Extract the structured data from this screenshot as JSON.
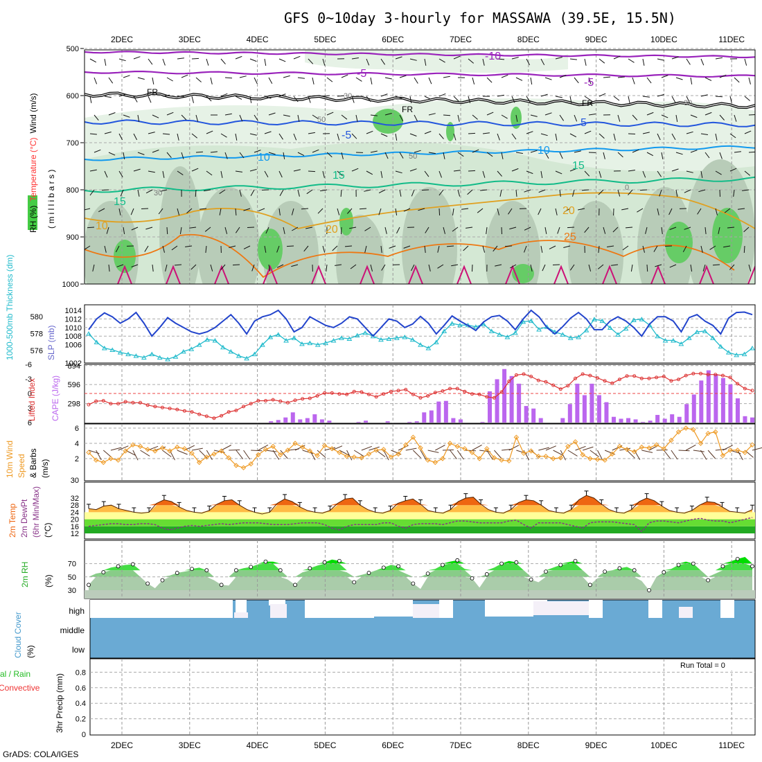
{
  "title": "GFS 0~10day 3-hourly for MASSAWA (39.5E, 15.5N)",
  "credit": "GrADS: COLA/IGES",
  "dates": [
    "2DEC",
    "3DEC",
    "4DEC",
    "5DEC",
    "6DEC",
    "7DEC",
    "8DEC",
    "9DEC",
    "10DEC",
    "11DEC"
  ],
  "panels": {
    "upper_air": {
      "ylabel_parts": [
        "RH (%)",
        "Temperature (°C)",
        "Wind (m/s)"
      ],
      "ylabel_units": "( m i l l i b a r s )",
      "yticks": [
        500,
        600,
        700,
        800,
        900,
        1000
      ],
      "contour_labels": [
        "-10",
        "-5",
        "-5",
        "FR",
        "FR",
        "FR",
        "5",
        "-5",
        "10",
        "10",
        "15",
        "15",
        "15",
        "20",
        "20",
        "25",
        "10",
        "30",
        "30",
        "50",
        "50",
        "30",
        "0"
      ]
    },
    "slp": {
      "ylabel_left": "1000-500mb Thickness (dm)",
      "ylabel_right": "SLP (mb)",
      "left_ticks": [
        580,
        578,
        576
      ],
      "right_ticks": [
        1014,
        1012,
        1010,
        1008,
        1006
      ],
      "right_bottom_tick": "1002"
    },
    "cape": {
      "ylabel_left": "Lifted Index",
      "ylabel_right": "CAPE (J/kg)",
      "left_ticks": [
        "-6",
        "-3",
        "0",
        "3",
        "6"
      ],
      "right_ticks": [
        "894",
        "596",
        "298"
      ]
    },
    "wind10m": {
      "ylabel": [
        "10m Wind",
        "Speed",
        "& Barbs",
        "(m/s)"
      ],
      "yticks": [
        "6",
        "4",
        "2"
      ],
      "top_tick": "30"
    },
    "temp2m": {
      "ylabel": [
        "2m Temp",
        "2m DewPt",
        "(6hr Min/Max)",
        "(°C)"
      ],
      "yticks": [
        "32",
        "28",
        "24",
        "20",
        "16",
        "12"
      ]
    },
    "rh2m": {
      "ylabel": [
        "2m RH",
        "(%)"
      ],
      "yticks": [
        "70",
        "50",
        "30"
      ]
    },
    "cloud": {
      "ylabel": [
        "Cloud Cover",
        "(%)"
      ],
      "levels": [
        "high",
        "middle",
        "low"
      ]
    },
    "precip": {
      "ylabel_left": [
        "Total / Rain",
        "Convective"
      ],
      "ylabel_right": "3hr Precip (mm)",
      "yticks": [
        "0.8",
        "0.6",
        "0.4",
        "0.2",
        "0"
      ],
      "run_total": "Run Total = 0"
    }
  },
  "chart_data": {
    "type": "meteogram",
    "x": "3-hourly steps, 2 DEC to 11 DEC",
    "slp_mb": [
      1009.5,
      1012,
      1013.4,
      1012.5,
      1011,
      1012,
      1013.5,
      1011,
      1008,
      1010,
      1012.3,
      1011,
      1010,
      1009,
      1008.5,
      1009,
      1010,
      1011.5,
      1013,
      1011,
      1008.5,
      1011.5,
      1012.5,
      1013,
      1014,
      1012,
      1009,
      1010,
      1012.5,
      1011.5,
      1010.5,
      1010,
      1011,
      1012.5,
      1012,
      1010,
      1008,
      1010,
      1012,
      1011.5,
      1010,
      1010.8,
      1012.6,
      1011,
      1008.5,
      1010.5,
      1012.7,
      1011.5,
      1010.5,
      1009.3,
      1011.3,
      1012.5,
      1012.8,
      1011.5,
      1009.5,
      1012,
      1014,
      1012.5,
      1010,
      1008.5,
      1010.2,
      1012.2,
      1013.5,
      1012,
      1009.5,
      1009.5,
      1011.5,
      1012.5,
      1011.5,
      1010,
      1008,
      1010.8,
      1012.5,
      1012.5,
      1011.5,
      1009,
      1012.3,
      1013,
      1011.5,
      1010.5,
      1008.5,
      1012.2,
      1013.5,
      1013.6,
      1013
    ],
    "thickness_dm": [
      578,
      577,
      576.3,
      576.1,
      575.8,
      575.6,
      575.4,
      575.2,
      575.6,
      575.2,
      575,
      575.3,
      575.9,
      576.2,
      576.7,
      577.3,
      577.2,
      576.4,
      575.9,
      575.4,
      575.1,
      575.6,
      576.7,
      577.6,
      577.9,
      577.2,
      577.5,
      576.8,
      576.9,
      576.7,
      576.9,
      577.2,
      577.5,
      577.4,
      577.8,
      578.1,
      577.7,
      577.3,
      577.4,
      577.5,
      577.6,
      577.3,
      576.7,
      576.3,
      577,
      578.3,
      579.2,
      579,
      579,
      578.8,
      579.1,
      578.3,
      577.9,
      577.6,
      578.1,
      579.4,
      579.5,
      578.5,
      578.8,
      578.2,
      577.9,
      577.5,
      577.6,
      578.4,
      579.7,
      579.5,
      578.7,
      577.9,
      578.6,
      579.6,
      579.7,
      579,
      577.7,
      577.2,
      577.2,
      576.8,
      577.5,
      578.2,
      578.3,
      577.5,
      576.5,
      575.8,
      575.5,
      575.6,
      576.3
    ],
    "lifted_index": [
      2.3,
      1.6,
      1.5,
      2.1,
      2.1,
      1.7,
      1.9,
      1.9,
      2.4,
      2.7,
      2.9,
      3.1,
      3.3,
      3.6,
      3.8,
      4.3,
      4.7,
      5.1,
      4.6,
      3.8,
      3.5,
      2.7,
      2.1,
      1.5,
      1.5,
      1.3,
      1.6,
      1.9,
      1.4,
      1.1,
      1.0,
      0.5,
      -0.1,
      -0.1,
      0.1,
      0.2,
      -0.4,
      -0.3,
      0.2,
      0.7,
      0.1,
      -0.4,
      -0.6,
      -0.8,
      0.2,
      0.9,
      0.5,
      -0.2,
      -0.5,
      -1.0,
      -1.0,
      -0.4,
      0.1,
      0.2,
      0.7,
      0.9,
      -0.3,
      -2.5,
      -3.8,
      -4.0,
      -3.5,
      -2.7,
      -2.4,
      -1.7,
      -0.9,
      -1.6,
      -3.1,
      -4.0,
      -3.7,
      -3.2,
      -2.6,
      -2.1,
      -2.9,
      -3.6,
      -3.6,
      -3.1,
      -3.1,
      -3.3,
      -3.5,
      -2.6,
      -2.9,
      -3.7,
      -4.1,
      -4.1,
      -3.9,
      -3.9,
      -3.7,
      -3.3,
      -2.0,
      -1.0,
      -0.6
    ],
    "cape_jkg": [
      0,
      0,
      0,
      0,
      0,
      0,
      0,
      0,
      0,
      0,
      0,
      0,
      0,
      0,
      0,
      0,
      0,
      0,
      0,
      0,
      0,
      0,
      0,
      0,
      0,
      20,
      40,
      80,
      160,
      50,
      70,
      130,
      50,
      30,
      0,
      0,
      0,
      10,
      30,
      0,
      0,
      20,
      0,
      0,
      10,
      20,
      160,
      190,
      330,
      340,
      70,
      50,
      0,
      0,
      10,
      490,
      680,
      840,
      730,
      610,
      260,
      220,
      70,
      0,
      0,
      70,
      290,
      610,
      430,
      610,
      430,
      320,
      90,
      60,
      70,
      50,
      10,
      30,
      120,
      60,
      130,
      90,
      290,
      440,
      660,
      820,
      760,
      700,
      600,
      380,
      100,
      80
    ],
    "wind_speed_ms": [
      2.8,
      1.8,
      1.5,
      2,
      1.8,
      3,
      3.8,
      3.6,
      3.2,
      3,
      3.4,
      3,
      3.5,
      3.3,
      2.7,
      1.5,
      2.2,
      2.6,
      3,
      2.1,
      1.1,
      0.8,
      1.3,
      2.5,
      3.2,
      3.6,
      2.5,
      3.1,
      4,
      3.5,
      3,
      2.4,
      3.7,
      3.3,
      2.8,
      2.3,
      2.2,
      2.1,
      2.6,
      3.1,
      3.2,
      2.2,
      2.6,
      3.8,
      4.8,
      3.4,
      1.8,
      1.5,
      2,
      4,
      3.6,
      3.3,
      2.8,
      2,
      3.3,
      2.1,
      1.8,
      1.7,
      4.8,
      2.7,
      3,
      2.3,
      2.3,
      2,
      2.1,
      3.6,
      4.2,
      2.5,
      2,
      1.9,
      1.8,
      2.6,
      3.6,
      3.2,
      2.9,
      3.5,
      3.4,
      3.8,
      3.3,
      4.4,
      5.5,
      6,
      5.8,
      4,
      5.3,
      5.5,
      2.4,
      3.1,
      3.1,
      2.8,
      3.8
    ],
    "temp2m_c": [
      26,
      25.5,
      27.5,
      28,
      26,
      25,
      24,
      23.5,
      24,
      29,
      31,
      30,
      27,
      25,
      24,
      23.5,
      25,
      28.5,
      30.5,
      31,
      28,
      25.5,
      24,
      23,
      24,
      29,
      31.5,
      30,
      27,
      25,
      24,
      23.5,
      25,
      29,
      31.5,
      32,
      28,
      25.5,
      24,
      23.5,
      25,
      29,
      30.5,
      31.5,
      28.5,
      25,
      24,
      23.5,
      25.5,
      30,
      32,
      32.5,
      28.5,
      25.5,
      24,
      23.5,
      25.5,
      29.5,
      31,
      30.5,
      28,
      25,
      24,
      23.5,
      25.5,
      31,
      33.5,
      32,
      28.5,
      25.5,
      24,
      23.5,
      25.5,
      30,
      32,
      30.5,
      27.5,
      25,
      24,
      23.5,
      25,
      28,
      30,
      29.5,
      27,
      24.5,
      24,
      23.5,
      25.5
    ],
    "dewpt2m_c": [
      16,
      16.5,
      17,
      17.5,
      17.5,
      17,
      17,
      17.5,
      17.5,
      17,
      15,
      14,
      15,
      16,
      16.5,
      16,
      16.5,
      17,
      17.5,
      17,
      17.5,
      18,
      18,
      18,
      17.5,
      17,
      17,
      17,
      17.5,
      18,
      18,
      18,
      17,
      15,
      14,
      16,
      17,
      17,
      17,
      17,
      18,
      18,
      16,
      15,
      17,
      17.5,
      17.5,
      17.5,
      17,
      18,
      19,
      19,
      18.5,
      18,
      18,
      18,
      18,
      19,
      19.5,
      17,
      15,
      18,
      18,
      18,
      18,
      17,
      16,
      15,
      18,
      18.5,
      18.5,
      18.5,
      18,
      17.5,
      17,
      13,
      18,
      19,
      19,
      18.5,
      18,
      19,
      20,
      20.5,
      19.5,
      19,
      19,
      18,
      19,
      20,
      21
    ],
    "rh2m_pct": [
      38,
      55,
      57,
      64,
      66,
      68,
      69,
      50,
      40,
      33,
      45,
      52,
      56,
      58,
      62,
      64,
      60,
      45,
      38,
      37,
      60,
      63,
      65,
      69,
      73,
      73,
      60,
      46,
      38,
      57,
      63,
      67,
      72,
      76,
      74,
      57,
      42,
      53,
      56,
      60,
      64,
      68,
      66,
      55,
      40,
      32,
      55,
      62,
      68,
      73,
      75,
      62,
      48,
      34,
      54,
      64,
      70,
      74,
      72,
      60,
      46,
      42,
      58,
      64,
      68,
      72,
      74,
      60,
      38,
      48,
      58,
      60,
      63,
      65,
      60,
      44,
      30,
      50,
      57,
      62,
      68,
      73,
      70,
      60,
      45,
      55,
      66,
      73,
      77,
      80,
      66
    ]
  }
}
